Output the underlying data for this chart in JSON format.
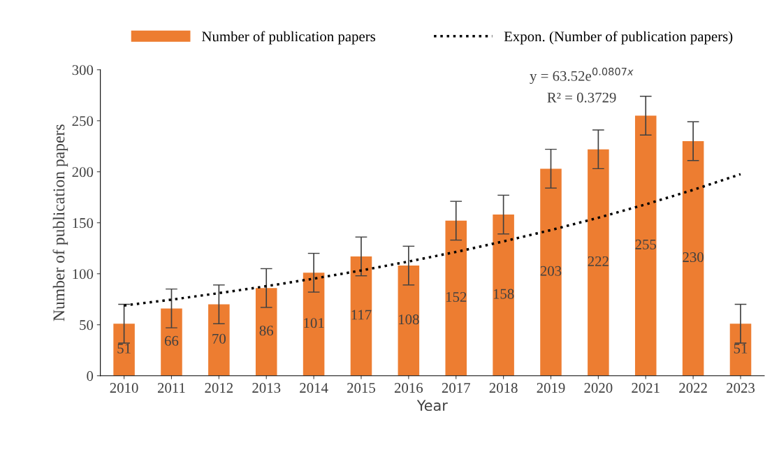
{
  "chart_data": {
    "type": "bar",
    "xlabel": "Year",
    "ylabel": "Number of publication papers",
    "categories": [
      "2010",
      "2011",
      "2012",
      "2013",
      "2014",
      "2015",
      "2016",
      "2017",
      "2018",
      "2019",
      "2020",
      "2021",
      "2022",
      "2023"
    ],
    "series": [
      {
        "name": "Number of publication papers",
        "color": "#ed7d31",
        "values": [
          51,
          66,
          70,
          86,
          101,
          117,
          108,
          152,
          158,
          203,
          222,
          255,
          230,
          51
        ],
        "value_labels": [
          "51",
          "66",
          "70",
          "86",
          "101",
          "117",
          "108",
          "152",
          "158",
          "203",
          "222",
          "255",
          "230",
          "51"
        ],
        "errors": [
          19,
          19,
          19,
          19,
          19,
          19,
          19,
          19,
          19,
          19,
          19,
          19,
          19,
          19
        ]
      },
      {
        "name": "Expon. (Number of publication papers)",
        "type": "line",
        "color": "#000000",
        "line_style": "dotted",
        "marker": "none",
        "values": [
          68.9,
          74.6,
          81.0,
          87.8,
          95.2,
          103.2,
          112.0,
          121.4,
          131.7,
          142.8,
          154.9,
          168.0,
          182.2,
          197.6
        ]
      }
    ],
    "ylim": [
      0,
      300
    ],
    "yticks": [
      0,
      50,
      100,
      150,
      200,
      250,
      300
    ],
    "grid": false,
    "legend": "top",
    "annotations": [
      "y = 63.52e$^{0.0807x}$",
      "R² = 0.3729"
    ]
  }
}
